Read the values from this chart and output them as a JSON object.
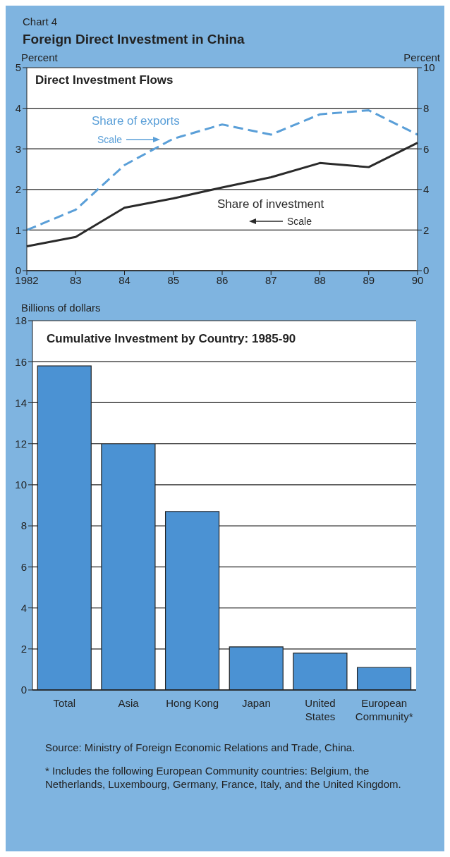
{
  "chart_data": [
    {
      "type": "line",
      "title": "Foreign Direct Investment in China",
      "subtitle": "Direct Investment Flows",
      "annotations": [
        "Chart 4",
        "Scale",
        "Scale"
      ],
      "categories": [
        "1982",
        "83",
        "84",
        "85",
        "86",
        "87",
        "88",
        "89",
        "90"
      ],
      "ylabel": "Percent",
      "y2label": "Percent",
      "ylim": [
        0,
        5
      ],
      "yticks": [
        0,
        1,
        2,
        3,
        4,
        5
      ],
      "y2lim": [
        0,
        10
      ],
      "y2ticks": [
        0,
        2,
        4,
        6,
        8,
        10
      ],
      "grid": "y",
      "legend": false,
      "series": [
        {
          "name": "Share of exports",
          "color": "#5a9fd8",
          "axis": "y2",
          "line_style": "dashed",
          "values": [
            2.0,
            3.0,
            5.2,
            6.5,
            7.2,
            6.7,
            7.7,
            7.9,
            6.7
          ]
        },
        {
          "name": "Share of investment",
          "color": "#2a2a2a",
          "axis": "y",
          "line_style": "solid",
          "values": [
            0.6,
            0.83,
            1.55,
            1.78,
            2.05,
            2.3,
            2.65,
            2.55,
            3.15
          ]
        }
      ]
    },
    {
      "type": "bar",
      "title": "Cumulative Investment by Country: 1985-90",
      "ylabel": "Billions of dollars",
      "categories": [
        "Total",
        "Asia",
        "Hong Kong",
        "Japan",
        "United States",
        "European Community*"
      ],
      "values": [
        15.8,
        12.0,
        8.7,
        2.1,
        1.8,
        1.1
      ],
      "color": "#4b92d3",
      "ylim": [
        0,
        18
      ],
      "yticks": [
        0,
        2,
        4,
        6,
        8,
        10,
        12,
        14,
        16,
        18
      ],
      "grid": "y",
      "legend": false,
      "annotations": [
        "Source:  Ministry of Foreign Economic Relations and Trade, China.",
        "* Includes the following European Community countries:  Belgium, the Netherlands, Luxembourg, Germany, France, Italy, and the United Kingdom."
      ]
    }
  ]
}
